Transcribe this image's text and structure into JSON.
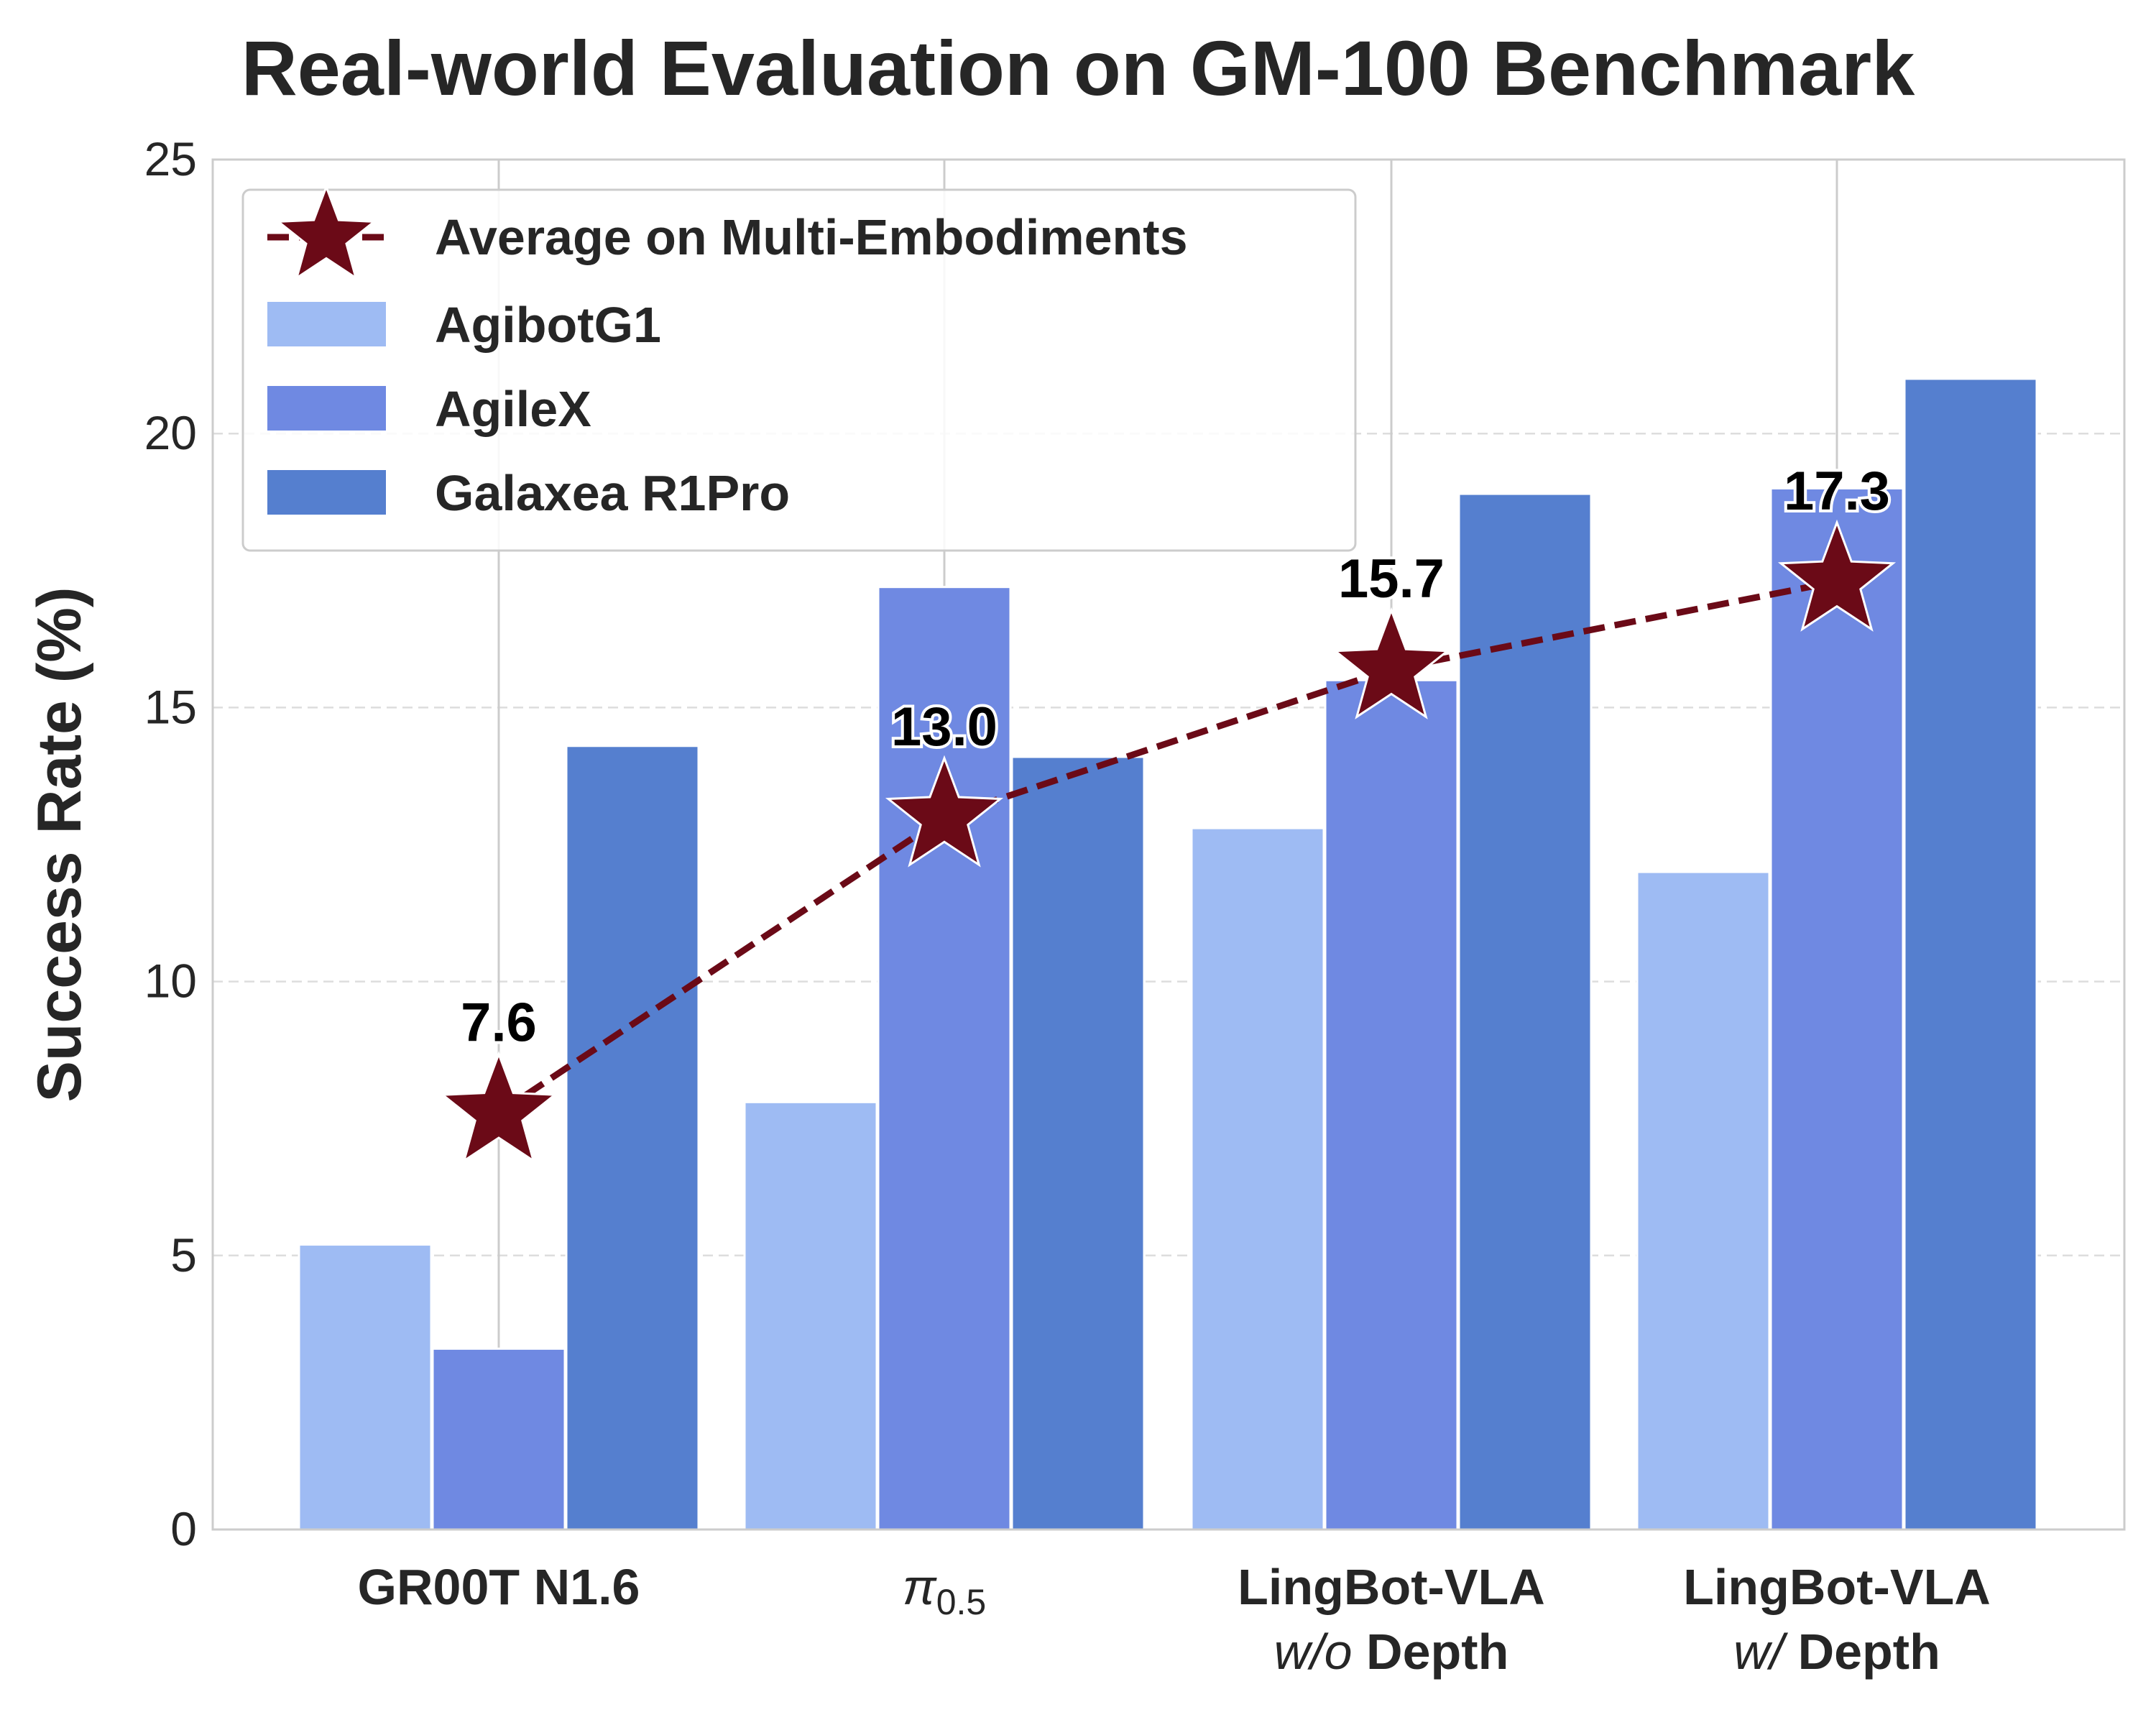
{
  "chart_data": {
    "type": "bar",
    "title": "Real-world Evaluation on GM-100 Benchmark",
    "xlabel": "",
    "ylabel": "Success Rate (%)",
    "ylim": [
      0,
      25
    ],
    "yticks": [
      "0",
      "5",
      "10",
      "15",
      "20",
      "25"
    ],
    "grid": true,
    "legend_position": "top-left",
    "categories": [
      {
        "line1": "GR00T N1.6",
        "line2": ""
      },
      {
        "line1": "π0.5",
        "line2": ""
      },
      {
        "line1": "LingBot-VLA",
        "line2": "w/o Depth"
      },
      {
        "line1": "LingBot-VLA",
        "line2": "w/ Depth"
      }
    ],
    "series": [
      {
        "name": "AgibotG1",
        "color": "#9ebbf3",
        "values": [
          5.2,
          7.8,
          12.8,
          12.0
        ]
      },
      {
        "name": "AgileX",
        "color": "#6f89e2",
        "values": [
          3.3,
          17.2,
          15.5,
          19.0
        ]
      },
      {
        "name": "Galaxea R1Pro",
        "color": "#557fcf",
        "values": [
          14.3,
          14.1,
          18.9,
          21.0
        ]
      }
    ],
    "line_series": {
      "name": "Average on Multi-Embodiments",
      "type": "line",
      "color": "#6b0a17",
      "marker": "star",
      "values": [
        7.6,
        13.0,
        15.7,
        17.3
      ],
      "labels": [
        "7.6",
        "13.0",
        "15.7",
        "17.3"
      ]
    }
  }
}
